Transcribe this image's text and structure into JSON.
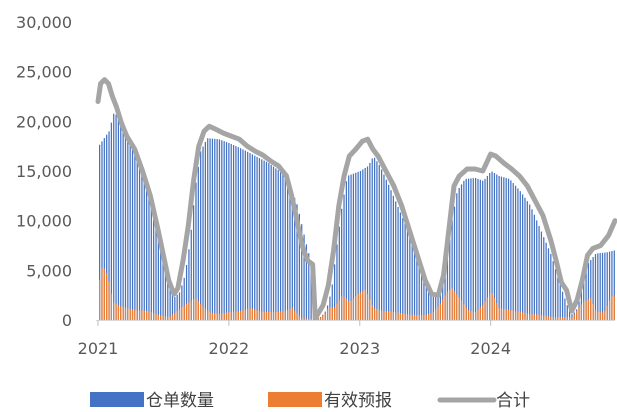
{
  "chart_data": {
    "type": "bar",
    "ylim": [
      0,
      30000
    ],
    "y_ticks": [
      "0",
      "5,000",
      "10,000",
      "15,000",
      "20,000",
      "25,000",
      "30,000"
    ],
    "x_ticks": [
      {
        "label": "2021",
        "value": 2021.0
      },
      {
        "label": "2022",
        "value": 2022.0
      },
      {
        "label": "2023",
        "value": 2023.0
      },
      {
        "label": "2024",
        "value": 2024.0
      }
    ],
    "xlim": [
      2021.0,
      2024.95
    ],
    "grid": false,
    "legend_position": "bottom",
    "colors": {
      "warehouse": "#4472C4",
      "forecast": "#ED7D31",
      "total": "#A5A5A5"
    },
    "series": [
      {
        "name": "仓单数量",
        "color": "#4472C4",
        "kind": "bar",
        "points": [
          [
            2021.0,
            17500
          ],
          [
            2021.08,
            19000
          ],
          [
            2021.12,
            21000
          ],
          [
            2021.2,
            19000
          ],
          [
            2021.28,
            17000
          ],
          [
            2021.35,
            14500
          ],
          [
            2021.42,
            11000
          ],
          [
            2021.48,
            7000
          ],
          [
            2021.53,
            3800
          ],
          [
            2021.58,
            2300
          ],
          [
            2021.62,
            2800
          ],
          [
            2021.66,
            4500
          ],
          [
            2021.7,
            8000
          ],
          [
            2021.74,
            13500
          ],
          [
            2021.78,
            17000
          ],
          [
            2021.83,
            18300
          ],
          [
            2021.92,
            18200
          ],
          [
            2022.0,
            17800
          ],
          [
            2022.1,
            17200
          ],
          [
            2022.2,
            16500
          ],
          [
            2022.3,
            15800
          ],
          [
            2022.38,
            15000
          ],
          [
            2022.45,
            14000
          ],
          [
            2022.52,
            11500
          ],
          [
            2022.58,
            8000
          ],
          [
            2022.62,
            6000
          ],
          [
            2022.64,
            5200
          ],
          [
            2022.66,
            200
          ],
          [
            2022.7,
            300
          ],
          [
            2022.74,
            1000
          ],
          [
            2022.78,
            3000
          ],
          [
            2022.82,
            7500
          ],
          [
            2022.86,
            11500
          ],
          [
            2022.9,
            14500
          ],
          [
            2023.0,
            15000
          ],
          [
            2023.06,
            15500
          ],
          [
            2023.1,
            16500
          ],
          [
            2023.15,
            15500
          ],
          [
            2023.22,
            13500
          ],
          [
            2023.3,
            11000
          ],
          [
            2023.38,
            8500
          ],
          [
            2023.45,
            6000
          ],
          [
            2023.5,
            3500
          ],
          [
            2023.55,
            2300
          ],
          [
            2023.6,
            2400
          ],
          [
            2023.65,
            4500
          ],
          [
            2023.7,
            10000
          ],
          [
            2023.74,
            13000
          ],
          [
            2023.8,
            14200
          ],
          [
            2023.88,
            14300
          ],
          [
            2023.94,
            14000
          ],
          [
            2024.0,
            15000
          ],
          [
            2024.06,
            14500
          ],
          [
            2024.14,
            14200
          ],
          [
            2024.22,
            13000
          ],
          [
            2024.3,
            11500
          ],
          [
            2024.38,
            9000
          ],
          [
            2024.46,
            6500
          ],
          [
            2024.52,
            3800
          ],
          [
            2024.58,
            1500
          ],
          [
            2024.62,
            500
          ],
          [
            2024.66,
            1200
          ],
          [
            2024.7,
            3800
          ],
          [
            2024.74,
            5700
          ],
          [
            2024.8,
            6700
          ],
          [
            2024.88,
            6800
          ],
          [
            2024.94,
            7000
          ]
        ]
      },
      {
        "name": "有效预报",
        "color": "#ED7D31",
        "kind": "bar",
        "points": [
          [
            2021.0,
            3500
          ],
          [
            2021.03,
            5500
          ],
          [
            2021.07,
            4500
          ],
          [
            2021.11,
            1800
          ],
          [
            2021.18,
            1300
          ],
          [
            2021.28,
            1000
          ],
          [
            2021.38,
            900
          ],
          [
            2021.46,
            500
          ],
          [
            2021.54,
            300
          ],
          [
            2021.62,
            1100
          ],
          [
            2021.68,
            1700
          ],
          [
            2021.74,
            2200
          ],
          [
            2021.8,
            1300
          ],
          [
            2021.86,
            700
          ],
          [
            2021.92,
            600
          ],
          [
            2022.0,
            800
          ],
          [
            2022.08,
            900
          ],
          [
            2022.16,
            1200
          ],
          [
            2022.26,
            800
          ],
          [
            2022.34,
            800
          ],
          [
            2022.42,
            900
          ],
          [
            2022.48,
            1200
          ],
          [
            2022.55,
            200
          ],
          [
            2022.62,
            100
          ],
          [
            2022.7,
            200
          ],
          [
            2022.76,
            1300
          ],
          [
            2022.8,
            1200
          ],
          [
            2022.86,
            2500
          ],
          [
            2022.92,
            1800
          ],
          [
            2022.98,
            2600
          ],
          [
            2023.04,
            3100
          ],
          [
            2023.1,
            1200
          ],
          [
            2023.18,
            900
          ],
          [
            2023.26,
            800
          ],
          [
            2023.34,
            600
          ],
          [
            2023.42,
            500
          ],
          [
            2023.5,
            500
          ],
          [
            2023.56,
            800
          ],
          [
            2023.62,
            1800
          ],
          [
            2023.66,
            2800
          ],
          [
            2023.7,
            3200
          ],
          [
            2023.76,
            2200
          ],
          [
            2023.82,
            1000
          ],
          [
            2023.88,
            800
          ],
          [
            2023.94,
            1600
          ],
          [
            2024.0,
            2900
          ],
          [
            2024.06,
            1200
          ],
          [
            2024.14,
            1000
          ],
          [
            2024.22,
            800
          ],
          [
            2024.3,
            600
          ],
          [
            2024.38,
            500
          ],
          [
            2024.46,
            300
          ],
          [
            2024.54,
            300
          ],
          [
            2024.62,
            300
          ],
          [
            2024.7,
            1800
          ],
          [
            2024.76,
            2200
          ],
          [
            2024.8,
            900
          ],
          [
            2024.86,
            700
          ],
          [
            2024.92,
            2400
          ]
        ]
      },
      {
        "name": "合计",
        "color": "#A5A5A5",
        "kind": "line",
        "points": [
          [
            2021.0,
            22000
          ],
          [
            2021.02,
            23800
          ],
          [
            2021.05,
            24200
          ],
          [
            2021.08,
            23800
          ],
          [
            2021.11,
            22500
          ],
          [
            2021.14,
            21500
          ],
          [
            2021.18,
            19800
          ],
          [
            2021.22,
            18500
          ],
          [
            2021.28,
            17200
          ],
          [
            2021.34,
            15000
          ],
          [
            2021.4,
            12500
          ],
          [
            2021.46,
            9000
          ],
          [
            2021.5,
            6500
          ],
          [
            2021.54,
            4000
          ],
          [
            2021.58,
            2600
          ],
          [
            2021.61,
            3200
          ],
          [
            2021.65,
            6000
          ],
          [
            2021.69,
            9500
          ],
          [
            2021.73,
            14000
          ],
          [
            2021.77,
            17500
          ],
          [
            2021.81,
            19000
          ],
          [
            2021.85,
            19500
          ],
          [
            2021.9,
            19200
          ],
          [
            2021.96,
            18800
          ],
          [
            2022.02,
            18500
          ],
          [
            2022.08,
            18200
          ],
          [
            2022.14,
            17500
          ],
          [
            2022.2,
            17000
          ],
          [
            2022.26,
            16600
          ],
          [
            2022.32,
            16000
          ],
          [
            2022.38,
            15500
          ],
          [
            2022.44,
            14500
          ],
          [
            2022.48,
            12500
          ],
          [
            2022.52,
            10000
          ],
          [
            2022.56,
            7500
          ],
          [
            2022.6,
            6000
          ],
          [
            2022.64,
            5600
          ],
          [
            2022.66,
            200
          ],
          [
            2022.68,
            600
          ],
          [
            2022.72,
            1500
          ],
          [
            2022.76,
            3500
          ],
          [
            2022.8,
            7000
          ],
          [
            2022.84,
            11500
          ],
          [
            2022.88,
            14500
          ],
          [
            2022.92,
            16500
          ],
          [
            2022.97,
            17200
          ],
          [
            2023.02,
            18000
          ],
          [
            2023.06,
            18200
          ],
          [
            2023.1,
            17200
          ],
          [
            2023.14,
            16500
          ],
          [
            2023.2,
            15000
          ],
          [
            2023.26,
            13500
          ],
          [
            2023.32,
            11500
          ],
          [
            2023.38,
            9000
          ],
          [
            2023.44,
            6500
          ],
          [
            2023.5,
            4000
          ],
          [
            2023.55,
            2600
          ],
          [
            2023.6,
            2500
          ],
          [
            2023.64,
            4500
          ],
          [
            2023.68,
            9000
          ],
          [
            2023.72,
            13500
          ],
          [
            2023.76,
            14500
          ],
          [
            2023.82,
            15200
          ],
          [
            2023.88,
            15200
          ],
          [
            2023.94,
            15000
          ],
          [
            2024.0,
            16700
          ],
          [
            2024.04,
            16500
          ],
          [
            2024.1,
            15800
          ],
          [
            2024.16,
            15200
          ],
          [
            2024.22,
            14500
          ],
          [
            2024.28,
            13500
          ],
          [
            2024.34,
            12000
          ],
          [
            2024.4,
            10500
          ],
          [
            2024.46,
            8000
          ],
          [
            2024.5,
            6000
          ],
          [
            2024.54,
            3800
          ],
          [
            2024.58,
            3000
          ],
          [
            2024.62,
            900
          ],
          [
            2024.66,
            2000
          ],
          [
            2024.7,
            4000
          ],
          [
            2024.74,
            6500
          ],
          [
            2024.78,
            7200
          ],
          [
            2024.84,
            7500
          ],
          [
            2024.9,
            8500
          ],
          [
            2024.95,
            10000
          ]
        ]
      }
    ]
  }
}
